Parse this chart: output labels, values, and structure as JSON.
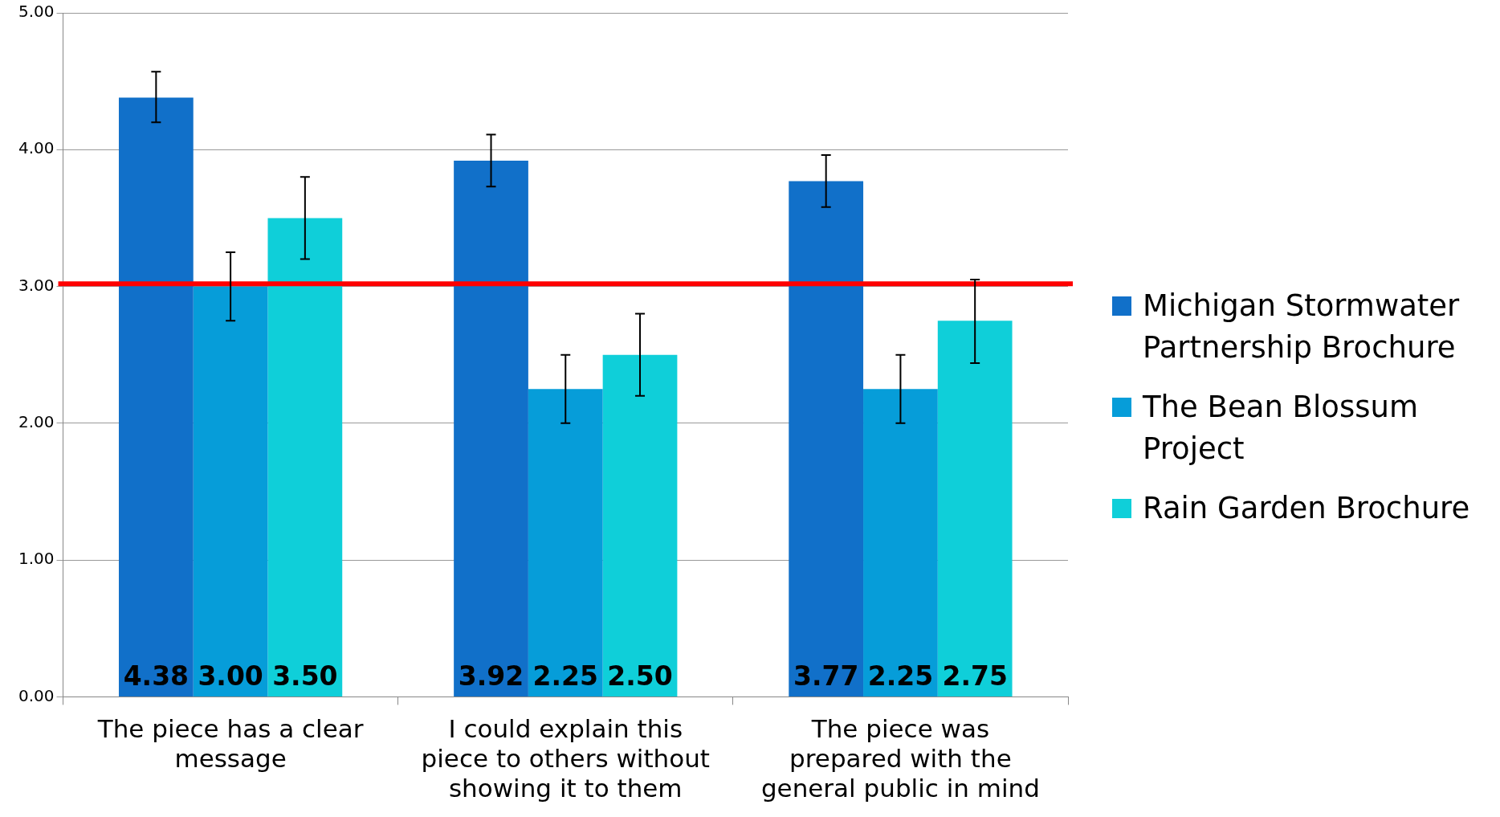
{
  "chart_data": {
    "type": "bar",
    "categories": [
      "The piece has a clear message",
      "I could explain this piece to others without showing it to them",
      "The piece was prepared with the general public in mind"
    ],
    "series": [
      {
        "name": "Michigan Stormwater Partnership Brochure",
        "color": "#1170c9",
        "values": [
          4.38,
          3.92,
          3.77
        ],
        "value_labels": [
          "4.38",
          "3.92",
          "3.77"
        ],
        "errors": [
          [
            4.2,
            4.57
          ],
          [
            3.73,
            4.11
          ],
          [
            3.58,
            3.96
          ]
        ]
      },
      {
        "name": "The Bean Blossum Project",
        "color": "#069dd9",
        "values": [
          3.0,
          2.25,
          2.25
        ],
        "value_labels": [
          "3.00",
          "2.25",
          "2.25"
        ],
        "errors": [
          [
            2.75,
            3.25
          ],
          [
            2.0,
            2.5
          ],
          [
            2.0,
            2.5
          ]
        ]
      },
      {
        "name": "Rain Garden Brochure",
        "color": "#0fcfd9",
        "values": [
          3.5,
          2.5,
          2.75
        ],
        "value_labels": [
          "3.50",
          "2.50",
          "2.75"
        ],
        "errors": [
          [
            3.2,
            3.8
          ],
          [
            2.2,
            2.8
          ],
          [
            2.44,
            3.05
          ]
        ]
      }
    ],
    "ylim": [
      0,
      5
    ],
    "yticks": [
      {
        "value": 0,
        "label": "0.00"
      },
      {
        "value": 1,
        "label": "1.00"
      },
      {
        "value": 2,
        "label": "2.00"
      },
      {
        "value": 3,
        "label": "3.00"
      },
      {
        "value": 4,
        "label": "4.00"
      },
      {
        "value": 5,
        "label": "5.00"
      }
    ],
    "ref_lines": [
      {
        "axis": "y",
        "value": 3.02,
        "color": "#ff0000"
      }
    ],
    "grid": "y",
    "legend": "right"
  }
}
